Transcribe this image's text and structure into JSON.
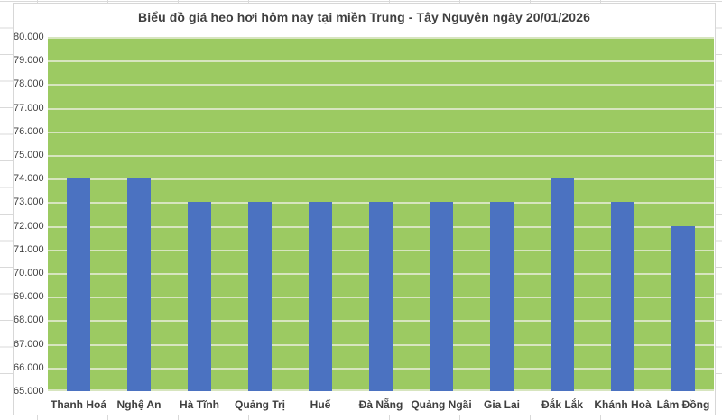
{
  "chart_data": {
    "type": "bar",
    "title": "Biểu đồ giá heo hơi hôm nay tại miền Trung - Tây Nguyên ngày 20/01/2026",
    "categories": [
      "Thanh Hoá",
      "Nghệ An",
      "Hà Tĩnh",
      "Quảng Trị",
      "Huế",
      "Đà Nẵng",
      "Quảng Ngãi",
      "Gia Lai",
      "Đắk Lắk",
      "Khánh Hoà",
      "Lâm Đồng"
    ],
    "values": [
      74000,
      74000,
      73000,
      73000,
      73000,
      73000,
      73000,
      73000,
      74000,
      73000,
      72000
    ],
    "y_tick_labels": [
      "80.000",
      "79.000",
      "78.000",
      "77.000",
      "76.000",
      "75.000",
      "74.000",
      "73.000",
      "72.000",
      "71.000",
      "70.000",
      "69.000",
      "68.000",
      "67.000",
      "66.000",
      "65.000"
    ],
    "ylim": [
      65000,
      80000
    ],
    "y_tick_step": 1000,
    "xlabel": "",
    "ylabel": "",
    "grid": true,
    "legend": "none",
    "colors": {
      "bar": "#4B72C1",
      "plot_background": "#9CCA62",
      "gridline": "#D7E5BF",
      "text": "#3F3F3F",
      "chart_border": "#D7D7D7",
      "sheet_gridline": "#D9D9D9",
      "canvas_background": "#FFFFFF"
    }
  }
}
